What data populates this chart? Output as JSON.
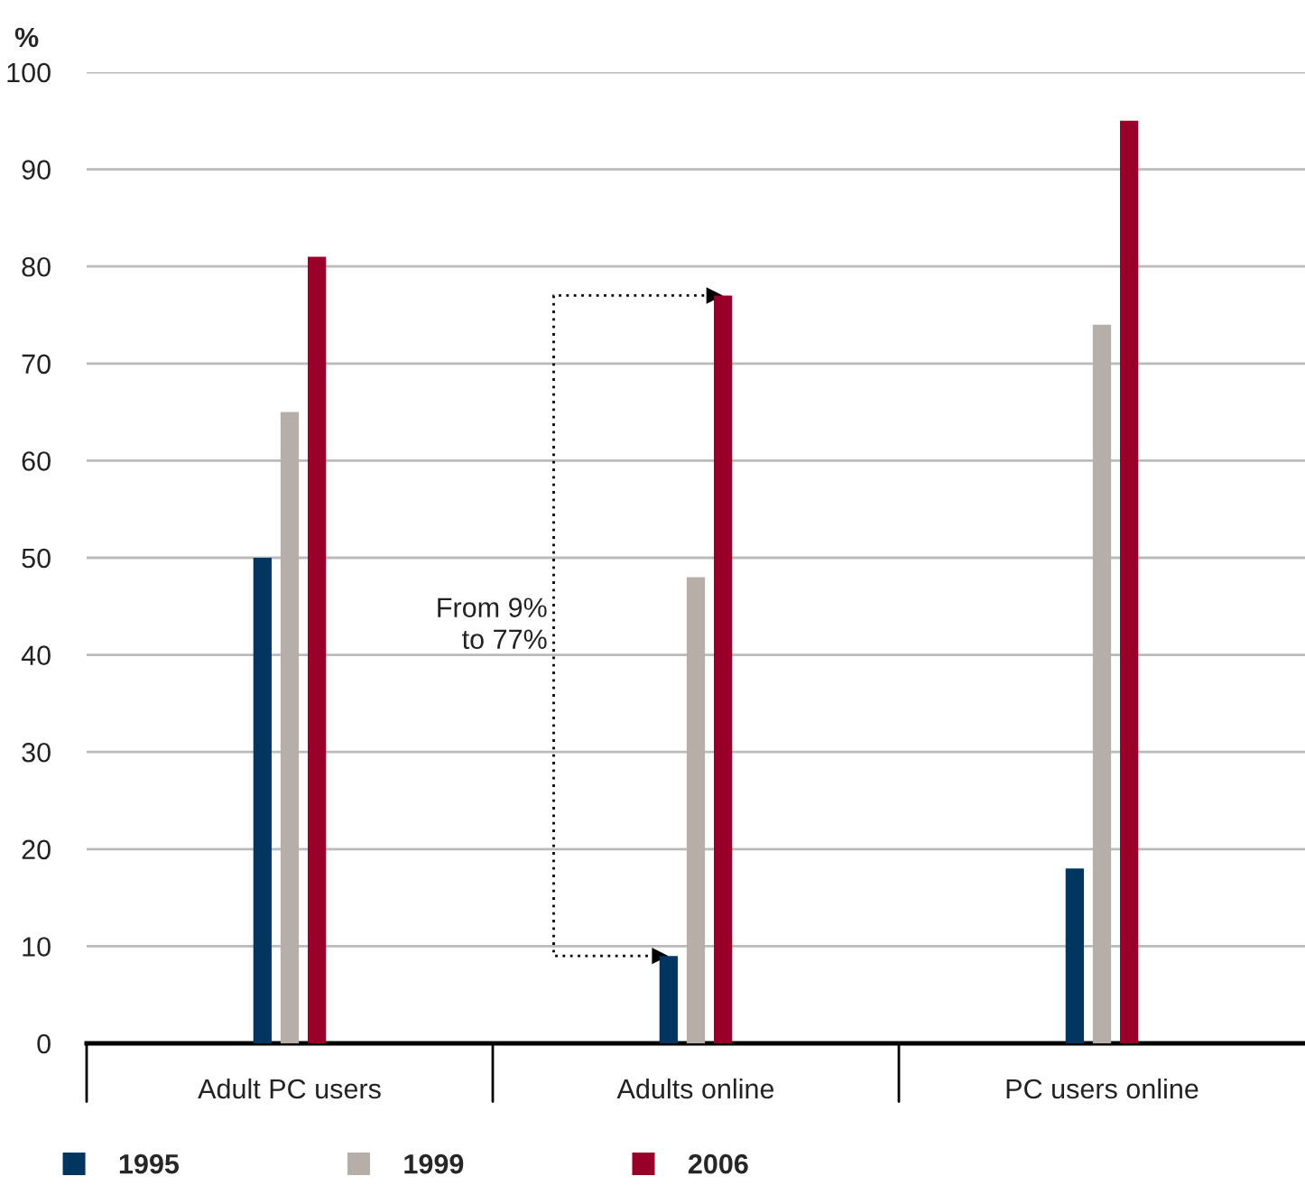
{
  "chart_data": {
    "type": "bar",
    "ylabel": "%",
    "categories": [
      "Adult PC users",
      "Adults online",
      "PC users online"
    ],
    "series": [
      {
        "name": "1995",
        "color": "#003660",
        "values": [
          50,
          9,
          18
        ]
      },
      {
        "name": "1999",
        "color": "#b5aea9",
        "values": [
          65,
          48,
          74
        ]
      },
      {
        "name": "2006",
        "color": "#990029",
        "values": [
          81,
          77,
          95
        ]
      }
    ],
    "ylim": [
      0,
      100
    ],
    "yticks": [
      0,
      10,
      20,
      30,
      40,
      50,
      60,
      70,
      80,
      90,
      100
    ],
    "grid": "y",
    "legend": "bottom left",
    "annotations": [
      "From 9%\nto 77%"
    ]
  }
}
